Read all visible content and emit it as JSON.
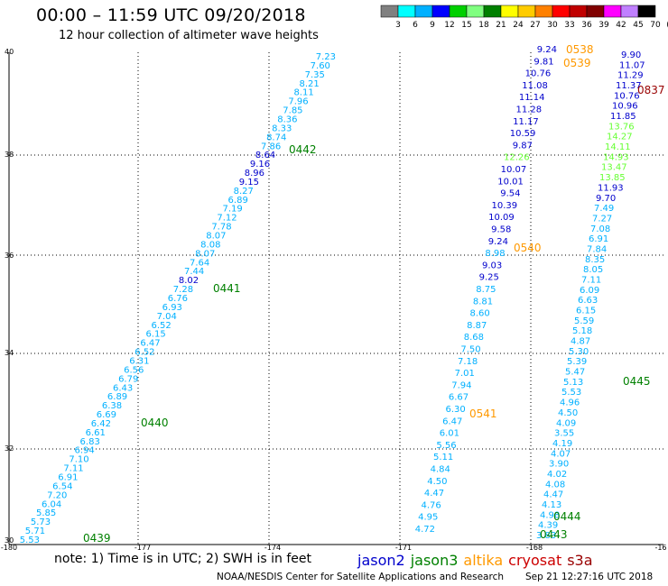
{
  "header": {
    "title": "00:00 – 11:59 UTC 09/20/2018",
    "subtitle": "12 hour collection of altimeter wave heights"
  },
  "colorbar": {
    "labels": [
      "3",
      "6",
      "9",
      "12",
      "15",
      "18",
      "21",
      "24",
      "27",
      "30",
      "33",
      "36",
      "39",
      "42",
      "45",
      "70",
      "(ft)"
    ],
    "colors": [
      "#808080",
      "#00ffff",
      "#00b0ff",
      "#0000ff",
      "#00d000",
      "#80ff80",
      "#008000",
      "#ffff00",
      "#ffcc00",
      "#ff8000",
      "#ff0000",
      "#c00000",
      "#800000",
      "#ff00ff",
      "#c080ff",
      "#000000"
    ]
  },
  "axes": {
    "x_ticks": [
      "-180",
      "-177",
      "-174",
      "-171",
      "-168",
      "-16"
    ],
    "y_ticks": [
      "40",
      "38",
      "36",
      "34",
      "32",
      "30"
    ]
  },
  "labels_colors": {
    "blue": "#0000cc",
    "cyan": "#00b0ff",
    "green": "#008000",
    "lightgreen": "#66ff33",
    "orange": "#ff9900",
    "darkred": "#990000"
  },
  "tracks": {
    "track_west": {
      "values": [
        "7.23",
        "7.60",
        "7.35",
        "8.21",
        "8.11",
        "7.96",
        "7.85",
        "8.36",
        "8.33",
        "8.74",
        "7.86",
        "8.64",
        "9.16",
        "8.96",
        "9.15",
        "8.27",
        "6.89",
        "7.19",
        "7.12",
        "7.78",
        "8.07",
        "8.08",
        "8.07",
        "7.64",
        "7.44",
        "8.02",
        "7.28",
        "6.76",
        "6.93",
        "7.04",
        "6.52",
        "6.15",
        "6.47",
        "6.52",
        "6.31",
        "6.56",
        "6.79",
        "6.43",
        "6.89",
        "6.38",
        "6.69",
        "6.42",
        "6.61",
        "6.83",
        "6.94",
        "7.10",
        "7.11",
        "6.91",
        "6.54",
        "7.20",
        "6.04",
        "5.85",
        "5.73",
        "5.71",
        "5.53"
      ],
      "colors": [
        "c",
        "c",
        "c",
        "c",
        "c",
        "c",
        "c",
        "c",
        "c",
        "c",
        "c",
        "b",
        "b",
        "b",
        "b",
        "c",
        "c",
        "c",
        "c",
        "c",
        "c",
        "c",
        "c",
        "c",
        "c",
        "b",
        "c",
        "c",
        "c",
        "c",
        "c",
        "c",
        "c",
        "c",
        "c",
        "c",
        "c",
        "c",
        "c",
        "c",
        "c",
        "c",
        "c",
        "c",
        "c",
        "c",
        "c",
        "c",
        "c",
        "c",
        "c",
        "c",
        "c",
        "c",
        "c"
      ]
    },
    "track_mid": {
      "values": [
        "9.24",
        "9.81",
        "10.76",
        "11.08",
        "11.14",
        "11.28",
        "11.17",
        "10.59",
        "9.87",
        "12.26",
        "10.07",
        "10.01",
        "9.54",
        "10.39",
        "10.09",
        "9.58",
        "9.24",
        "8.98",
        "9.03",
        "9.25",
        "8.75",
        "8.81",
        "8.60",
        "8.87",
        "8.68",
        "7.50",
        "7.18",
        "7.01",
        "7.94",
        "6.67",
        "6.30",
        "6.47",
        "6.01",
        "5.56",
        "5.11",
        "4.84",
        "4.50",
        "4.47",
        "4.76",
        "4.95",
        "4.72"
      ],
      "colors": [
        "b",
        "b",
        "b",
        "b",
        "b",
        "b",
        "b",
        "b",
        "b",
        "g",
        "b",
        "b",
        "b",
        "b",
        "b",
        "b",
        "b",
        "c",
        "b",
        "b",
        "c",
        "c",
        "c",
        "c",
        "c",
        "c",
        "c",
        "c",
        "c",
        "c",
        "c",
        "c",
        "c",
        "c",
        "c",
        "c",
        "c",
        "c",
        "c",
        "c",
        "c"
      ]
    },
    "track_east": {
      "values": [
        "9.90",
        "11.07",
        "11.29",
        "11.37",
        "10.76",
        "10.96",
        "11.85",
        "13.76",
        "14.27",
        "14.11",
        "14.93",
        "13.47",
        "13.85",
        "11.93",
        "9.70",
        "7.49",
        "7.27",
        "7.08",
        "6.91",
        "7.84",
        "8.35",
        "8.05",
        "7.11",
        "6.09",
        "6.63",
        "6.15",
        "5.59",
        "5.18",
        "4.87",
        "5.30",
        "5.39",
        "5.47",
        "5.13",
        "5.53",
        "4.96",
        "4.50",
        "4.09",
        "3.55",
        "4.19",
        "4.07",
        "3.90",
        "4.02",
        "4.08",
        "4.47",
        "4.13",
        "4.98",
        "4.39",
        "3.83"
      ],
      "colors": [
        "b",
        "b",
        "b",
        "b",
        "b",
        "b",
        "b",
        "g",
        "g",
        "g",
        "g",
        "g",
        "g",
        "b",
        "b",
        "c",
        "c",
        "c",
        "c",
        "c",
        "c",
        "c",
        "c",
        "c",
        "c",
        "c",
        "c",
        "c",
        "c",
        "c",
        "c",
        "c",
        "c",
        "c",
        "c",
        "c",
        "c",
        "c",
        "c",
        "c",
        "c",
        "c",
        "c",
        "c",
        "c",
        "c",
        "c",
        "c"
      ]
    }
  },
  "time_labels": [
    {
      "text": "0439",
      "color": "green"
    },
    {
      "text": "0440",
      "color": "green"
    },
    {
      "text": "0441",
      "color": "green"
    },
    {
      "text": "0442",
      "color": "green"
    },
    {
      "text": "0538",
      "color": "orange"
    },
    {
      "text": "0539",
      "color": "orange"
    },
    {
      "text": "0540",
      "color": "orange"
    },
    {
      "text": "0541",
      "color": "orange"
    },
    {
      "text": "0837",
      "color": "darkred"
    },
    {
      "text": "0443",
      "color": "green"
    },
    {
      "text": "0444",
      "color": "green"
    },
    {
      "text": "0445",
      "color": "green"
    }
  ],
  "footer": {
    "note": "note:  1) Time is in UTC;  2) SWH is in feet",
    "credit": "NOAA/NESDIS Center for Satellite Applications and Research",
    "stamp": "Sep 21 12:27:16 UTC 2018",
    "legend": [
      {
        "name": "jason2",
        "color": "#0000cc"
      },
      {
        "name": "jason3",
        "color": "#008000"
      },
      {
        "name": "altika",
        "color": "#ff9900"
      },
      {
        "name": "cryosat",
        "color": "#cc0000"
      },
      {
        "name": "s3a",
        "color": "#990000"
      }
    ]
  }
}
